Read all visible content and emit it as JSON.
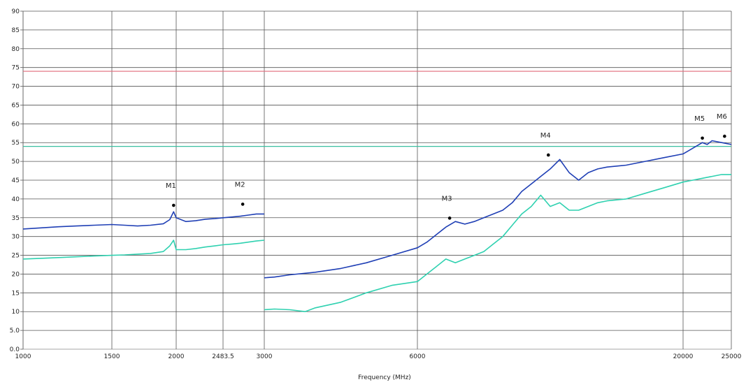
{
  "header": {
    "title": ""
  },
  "chart_data": {
    "type": "line",
    "title": "",
    "xlabel": "Frequency (MHz)",
    "ylabel": "",
    "ylim": [
      0,
      90
    ],
    "y_ticks": [
      "0.0",
      "5.0",
      "10",
      "15",
      "20",
      "25",
      "30",
      "35",
      "40",
      "45",
      "50",
      "55",
      "60",
      "65",
      "70",
      "75",
      "80",
      "85",
      "90"
    ],
    "x_ticks": [
      "1000",
      "1500",
      "2000",
      "2483.5",
      "3000",
      "6000",
      "20000",
      "25000"
    ],
    "grid": true,
    "limit_lines": [
      {
        "value": 74,
        "color": "#e06a7a"
      },
      {
        "value": 54,
        "color": "#3bbfa0"
      }
    ],
    "series": [
      {
        "color": "#1f3fb5",
        "x": [
          1000,
          1100,
          1200,
          1300,
          1400,
          1500,
          1600,
          1700,
          1800,
          1900,
          1950,
          1980,
          2000,
          2100,
          2200,
          2300,
          2400,
          2483.5,
          2600,
          2700,
          2800,
          2900,
          3000,
          3000,
          3200,
          3500,
          4000,
          4500,
          5000,
          5500,
          6000,
          6500,
          7000,
          7500,
          8000,
          8500,
          9000,
          9500,
          10000,
          10500,
          11000,
          11500,
          12000,
          12500,
          13000,
          13500,
          14000,
          14500,
          15000,
          15500,
          16000,
          17000,
          18000,
          19000,
          20000,
          21000,
          22000,
          22500,
          23000,
          24000,
          25000
        ],
        "values": [
          32,
          32.3,
          32.6,
          32.8,
          33,
          33.2,
          33,
          32.8,
          33,
          33.4,
          34.5,
          36.6,
          35,
          34,
          34.2,
          34.6,
          34.8,
          35,
          35.2,
          35.4,
          35.7,
          36,
          36,
          19,
          19.2,
          19.8,
          20.5,
          21.5,
          23,
          25,
          27,
          28.5,
          30.5,
          32.5,
          34,
          33.3,
          34,
          35,
          36,
          37,
          39,
          42,
          44,
          46,
          48,
          50.5,
          47,
          45,
          47,
          48,
          48.5,
          49,
          50,
          51,
          52,
          53.5,
          55,
          54.5,
          55.5,
          55,
          54.5
        ]
      },
      {
        "color": "#2fd1b0",
        "x": [
          1000,
          1100,
          1200,
          1300,
          1400,
          1500,
          1600,
          1700,
          1800,
          1900,
          1950,
          1980,
          2000,
          2100,
          2200,
          2300,
          2400,
          2483.5,
          2600,
          2700,
          2800,
          2900,
          3000,
          3000,
          3200,
          3500,
          3800,
          4000,
          4500,
          5000,
          5500,
          6000,
          6500,
          7000,
          7500,
          8000,
          8500,
          9000,
          9500,
          10000,
          10500,
          11000,
          11500,
          12000,
          12500,
          13000,
          13500,
          14000,
          14500,
          15000,
          15500,
          16000,
          17000,
          18000,
          19000,
          20000,
          21000,
          22000,
          23000,
          24000,
          25000
        ],
        "values": [
          24,
          24.2,
          24.4,
          24.6,
          24.8,
          25,
          25.1,
          25.3,
          25.5,
          26,
          27.5,
          29,
          26.5,
          26.5,
          26.8,
          27.2,
          27.5,
          27.8,
          28,
          28.2,
          28.5,
          28.8,
          29,
          10.5,
          10.7,
          10.5,
          10,
          11,
          12.5,
          15,
          17,
          18,
          20,
          22,
          24,
          23,
          24,
          25,
          26,
          28,
          30,
          33,
          36,
          38,
          41,
          38,
          39,
          37,
          37,
          38,
          39,
          39.5,
          40,
          41.5,
          43,
          44.5,
          45,
          45.5,
          46,
          46.5,
          46.5
        ]
      }
    ],
    "markers": [
      {
        "label": "M1",
        "x": 1980,
        "y": 38.3
      },
      {
        "label": "M2",
        "x": 2730,
        "y": 38.6
      },
      {
        "label": "M3",
        "x": 7700,
        "y": 34.9
      },
      {
        "label": "M4",
        "x": 12900,
        "y": 51.7
      },
      {
        "label": "M5",
        "x": 22000,
        "y": 56.2
      },
      {
        "label": "M6",
        "x": 24300,
        "y": 56.7
      }
    ]
  }
}
